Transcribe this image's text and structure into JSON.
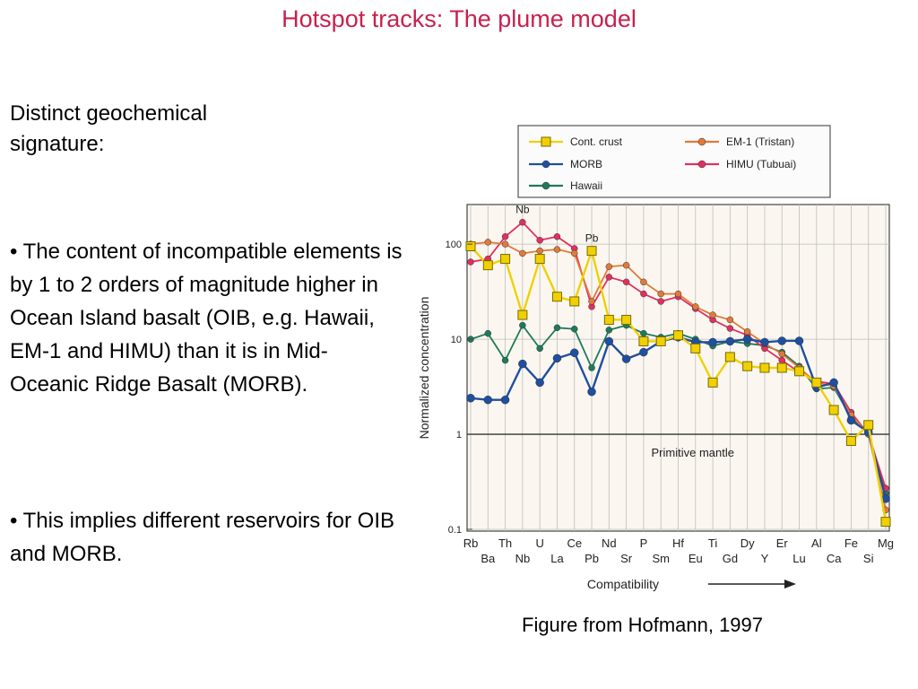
{
  "slide": {
    "title": "Hotspot tracks: The plume model",
    "lead": "Distinct geochemical signature:",
    "bullets": [
      "• The content of incompatible elements is by 1 to 2 orders of magnitude higher in Ocean Island basalt (OIB, e.g. Hawaii, EM-1 and HIMU) than it is in Mid-Oceanic Ridge Basalt (MORB).",
      "• This implies different reservoirs for OIB and MORB."
    ],
    "caption": "Figure from Hofmann, 1997"
  },
  "chart_data": {
    "type": "line",
    "xlabel": "Compatibility",
    "ylabel": "Normalized concentration",
    "yscale": "log",
    "ylim": [
      0.1,
      250
    ],
    "yticks": [
      "100",
      "10",
      "1",
      "0.1"
    ],
    "reference_line": {
      "value": 1,
      "label": "Primitive mantle"
    },
    "categories": [
      "Rb",
      "Ba",
      "Th",
      "Nb",
      "U",
      "La",
      "Ce",
      "Pb",
      "Nd",
      "Sr",
      "P",
      "Sm",
      "Hf",
      "Eu",
      "Ti",
      "Gd",
      "Dy",
      "Y",
      "Er",
      "Lu",
      "Al",
      "Ca",
      "Fe",
      "Si",
      "Mg"
    ],
    "labels_top": [
      "Rb",
      "Th",
      "U",
      "Ce",
      "Nd",
      "P",
      "Hf",
      "Ti",
      "Dy",
      "Er",
      "Al",
      "Fe",
      "Mg"
    ],
    "labels_bottom": [
      "Ba",
      "Nb",
      "La",
      "Pb",
      "Sr",
      "Sm",
      "Eu",
      "Gd",
      "Y",
      "Lu",
      "Ca",
      "Si"
    ],
    "annotations": [
      {
        "text": "Nb",
        "x": "Nb"
      },
      {
        "text": "Pb",
        "x": "Pb"
      }
    ],
    "legend_position": "top",
    "series": [
      {
        "name": "Cont. crust",
        "color": "#f0d000",
        "marker": "square",
        "values": [
          95,
          60,
          70,
          18,
          70,
          28,
          25,
          85,
          16,
          16,
          9.5,
          9.5,
          11,
          8,
          3.5,
          6.5,
          5.2,
          5,
          5,
          4.6,
          3.5,
          1.8,
          0.85,
          1.25,
          0.12
        ]
      },
      {
        "name": "MORB",
        "color": "#1f4fa0",
        "marker": "circle",
        "values": [
          2.4,
          2.3,
          2.3,
          5.5,
          3.5,
          6.3,
          7.2,
          2.8,
          9.5,
          6.2,
          7.3,
          9.5,
          10.5,
          9.3,
          9.3,
          9.5,
          10,
          9.3,
          9.6,
          9.6,
          3.1,
          3.5,
          1.4,
          1.05,
          0.21
        ]
      },
      {
        "name": "Hawaii",
        "color": "#1f7a5c",
        "marker": "circle",
        "values": [
          10,
          11.5,
          6,
          14,
          8,
          13.2,
          12.8,
          5,
          12.5,
          14,
          11.5,
          10.5,
          11.5,
          10,
          8.5,
          9.5,
          9,
          8.6,
          7.3,
          5.2,
          3,
          3.1,
          1.5,
          1.05,
          0.24
        ]
      },
      {
        "name": "EM-1 (Tristan)",
        "color": "#e07a3a",
        "marker": "circle",
        "values": [
          100,
          105,
          100,
          80,
          85,
          88,
          80,
          25,
          58,
          60,
          40,
          30,
          30,
          22,
          18,
          16,
          12,
          9,
          7,
          5,
          3.5,
          3.2,
          1.6,
          1,
          0.16
        ]
      },
      {
        "name": "HIMU (Tubuai)",
        "color": "#e03060",
        "marker": "circle",
        "values": [
          65,
          70,
          120,
          170,
          110,
          120,
          90,
          22,
          45,
          40,
          30,
          25,
          28,
          21,
          16,
          13,
          11,
          8,
          6,
          4.5,
          3.6,
          3.4,
          1.7,
          1,
          0.27
        ]
      }
    ]
  }
}
